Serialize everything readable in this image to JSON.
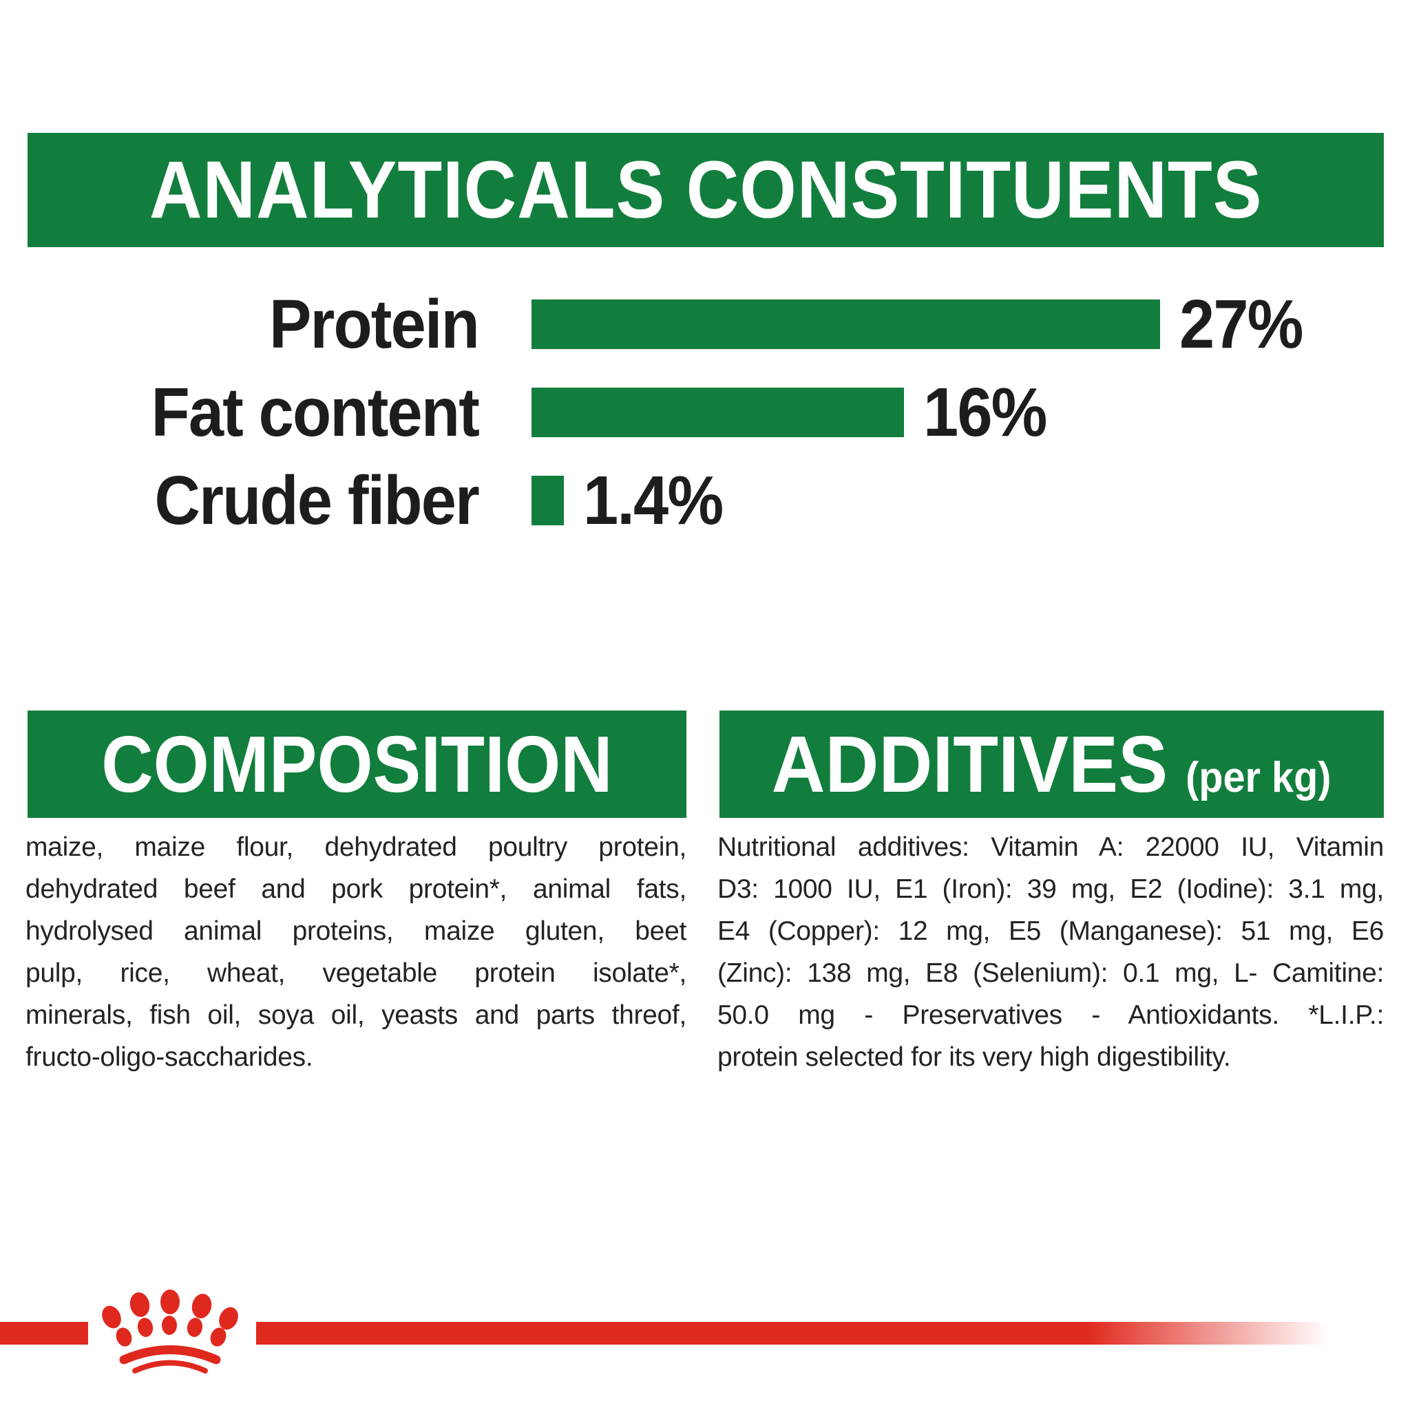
{
  "colors": {
    "section_green": "#127e3d",
    "brand_red": "#e0291e",
    "text_black": "#1d1d1b",
    "background": "#ffffff"
  },
  "analyticals_banner": {
    "title": "ANALYTICALS CONSTITUENTS"
  },
  "chart_data": {
    "type": "bar",
    "orientation": "horizontal",
    "title": "ANALYTICALS CONSTITUENTS",
    "categories": [
      "Protein",
      "Fat content",
      "Crude fiber"
    ],
    "values": [
      27,
      16,
      1.4
    ],
    "value_labels": [
      "27%",
      "16%",
      "1.4%"
    ],
    "unit": "%",
    "xlim": [
      0,
      30
    ],
    "grid": false,
    "bar_color": "#127e3d",
    "value_label_position": "right-of-bar"
  },
  "composition": {
    "title": "COMPOSITION",
    "lines": [
      "maize, maize flour, dehydrated poultry protein,",
      "dehydrated beef and pork protein*, animal fats,",
      "hydrolysed animal proteins, maize gluten, beet",
      "pulp, rice, wheat, vegetable protein isolate*,",
      "minerals, fish oil, soya oil, yeasts and parts threof,",
      "fructo-oligo-saccharides."
    ]
  },
  "additives": {
    "title": "ADDITIVES",
    "unit_suffix": "(per kg)",
    "lines": [
      "Nutritional additives: Vitamin A: 22000 IU, Vitamin",
      "D3: 1000 IU, E1 (Iron): 39 mg, E2 (Iodine): 3.1 mg,",
      "E4 (Copper): 12 mg, E5 (Manganese): 51 mg, E6",
      "(Zinc): 138 mg, E8 (Selenium): 0.1 mg, L- Camitine:",
      "50.0 mg - Preservatives - Antioxidants. *L.I.P.:",
      "protein selected for its very high digestibility."
    ]
  },
  "footer": {
    "logo_icon": "crown-paw-logo",
    "stripe_color": "#e0291e"
  }
}
